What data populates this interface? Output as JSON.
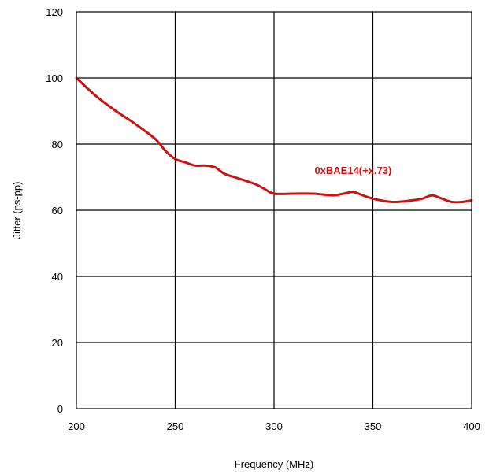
{
  "chart_data": {
    "type": "line",
    "title": "",
    "xlabel": "Frequency (MHz)",
    "ylabel": "Jitter (ps-pp)",
    "xlim": [
      200,
      400
    ],
    "ylim": [
      0,
      120
    ],
    "x_ticks": [
      200,
      250,
      300,
      350,
      400
    ],
    "y_ticks": [
      0,
      20,
      40,
      60,
      80,
      100,
      120
    ],
    "x_tick_labels": [
      "200",
      "250",
      "300",
      "350",
      "400"
    ],
    "y_tick_labels": [
      "0",
      "20",
      "40",
      "60",
      "80",
      "100",
      "120"
    ],
    "grid": true,
    "legend": "none",
    "series": [
      {
        "name": "0xBAE14(+x.73)",
        "color": "#cc1111",
        "x": [
          200,
          210,
          220,
          230,
          240,
          245,
          250,
          255,
          260,
          265,
          270,
          275,
          280,
          290,
          295,
          300,
          310,
          320,
          330,
          335,
          340,
          345,
          350,
          360,
          370,
          375,
          380,
          385,
          390,
          395,
          400
        ],
        "y": [
          100,
          94.5,
          90,
          86,
          81.5,
          78,
          75.5,
          74.5,
          73.5,
          73.5,
          73,
          71,
          70,
          68,
          66.5,
          65,
          65,
          65,
          64.5,
          65,
          65.5,
          64.5,
          63.5,
          62.5,
          63,
          63.5,
          64.5,
          63.5,
          62.5,
          62.5,
          63
        ]
      }
    ]
  }
}
